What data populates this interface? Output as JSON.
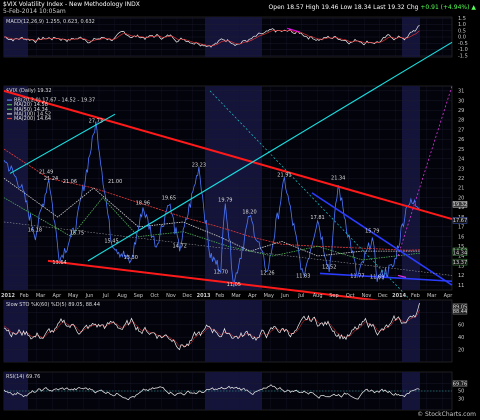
{
  "header": {
    "symbol": "$VIX",
    "name": "Volatility Index - New Methodology",
    "exchange": "INDX",
    "date": "5-Feb-2014 10:05am",
    "ohlc": "Open 18.57  High 19.46  Low 18.34  Last 19.32",
    "chg_label": "Chg",
    "chg": "+0.91 (+4.94%)",
    "chg_arrow": "▲",
    "watermark": "© StockCharts.com"
  },
  "chart_data": [
    {
      "type": "line",
      "panel": "macd",
      "title": "MACD(12,26,9) 1.255, 0.623, 0.632",
      "ylim": [
        -1.6,
        1.6
      ],
      "ticks": [
        "1.5",
        "1.0",
        "0.5",
        "0.0",
        "-0.5",
        "-1.0",
        "-1.5"
      ],
      "tick_values": [
        1.5,
        1.0,
        0.5,
        0.0,
        -0.5,
        -1.0,
        -1.5
      ]
    },
    {
      "type": "line",
      "panel": "price",
      "title": "$VIX (Daily) 19.32",
      "legend": [
        {
          "name": "$VIX (Daily) 19.32",
          "color": "#ffffff"
        },
        {
          "name": "BB(20,2.0) 17.67 - 14.52 - 19.37",
          "color": "#5c7cff"
        },
        {
          "name": "MA(20) 14.58",
          "color": "#4caf50"
        },
        {
          "name": "MA(50) 14.34",
          "color": "#4caf50"
        },
        {
          "name": "MA(100) 14.52",
          "color": "#d0d0d0"
        },
        {
          "name": "MA(200) 14.64",
          "color": "#e53935"
        }
      ],
      "ylim": [
        10.5,
        31.5
      ],
      "ticks": [
        "31",
        "30",
        "29",
        "28",
        "27",
        "26",
        "25",
        "24",
        "23",
        "22",
        "21",
        "20",
        "19",
        "18",
        "17",
        "16",
        "15",
        "14",
        "13",
        "12",
        "11"
      ],
      "tick_values": [
        31,
        30,
        29,
        28,
        27,
        26,
        25,
        24,
        23,
        22,
        21,
        20,
        19,
        18,
        17,
        16,
        15,
        14,
        13,
        12,
        11
      ],
      "current_labels": [
        {
          "text": "19.32",
          "value": 19.32
        },
        {
          "text": "17.67",
          "value": 17.67
        },
        {
          "text": "14.52",
          "value": 14.52
        },
        {
          "text": "14.34",
          "value": 14.34
        },
        {
          "text": "13.37",
          "value": 13.37
        }
      ],
      "annotations": [
        {
          "text": "27.73",
          "x": 0.205,
          "v": 27.73
        },
        {
          "text": "21.49",
          "x": 0.094,
          "v": 22.5
        },
        {
          "text": "21.24",
          "x": 0.105,
          "v": 21.8
        },
        {
          "text": "21.06",
          "x": 0.147,
          "v": 21.5
        },
        {
          "text": "21.00",
          "x": 0.248,
          "v": 21.5
        },
        {
          "text": "16.18",
          "x": 0.069,
          "v": 16.5
        },
        {
          "text": "16.75",
          "x": 0.163,
          "v": 16.2
        },
        {
          "text": "15.45",
          "x": 0.24,
          "v": 15.4
        },
        {
          "text": "13.64",
          "x": 0.124,
          "v": 13.2
        },
        {
          "text": "13.30",
          "x": 0.283,
          "v": 13.7
        },
        {
          "text": "18.96",
          "x": 0.31,
          "v": 19.3
        },
        {
          "text": "19.65",
          "x": 0.368,
          "v": 19.8
        },
        {
          "text": "14.72",
          "x": 0.392,
          "v": 14.9
        },
        {
          "text": "23.23",
          "x": 0.435,
          "v": 23.2
        },
        {
          "text": "19.79",
          "x": 0.494,
          "v": 19.6
        },
        {
          "text": "18.20",
          "x": 0.548,
          "v": 18.4
        },
        {
          "text": "12.70",
          "x": 0.484,
          "v": 12.2
        },
        {
          "text": "11.05",
          "x": 0.513,
          "v": 10.9
        },
        {
          "text": "12.26",
          "x": 0.588,
          "v": 12.1
        },
        {
          "text": "21.91",
          "x": 0.626,
          "v": 22.2
        },
        {
          "text": "17.81",
          "x": 0.7,
          "v": 17.8
        },
        {
          "text": "11.83",
          "x": 0.668,
          "v": 11.8
        },
        {
          "text": "12.52",
          "x": 0.726,
          "v": 12.7
        },
        {
          "text": "21.34",
          "x": 0.746,
          "v": 21.9
        },
        {
          "text": "11.77",
          "x": 0.789,
          "v": 11.8
        },
        {
          "text": "15.79",
          "x": 0.822,
          "v": 16.4
        },
        {
          "text": "11.69",
          "x": 0.833,
          "v": 11.7
        }
      ],
      "x_labels": [
        "2012",
        "Feb",
        "Mar",
        "Apr",
        "May",
        "Jun",
        "Jul",
        "Aug",
        "Sep",
        "Oct",
        "Nov",
        "Dec",
        "2013",
        "Feb",
        "Mar",
        "Apr",
        "May",
        "Jun",
        "Jul",
        "Aug",
        "Sep",
        "Oct",
        "Nov",
        "Dec",
        "2014",
        "Feb",
        "Mar",
        "Apr"
      ]
    },
    {
      "type": "line",
      "panel": "stoch",
      "title": "Slow STO %K(60) %D(5) 89.05, 88.44",
      "ylim": [
        0,
        100
      ],
      "ticks": [
        "80",
        "60",
        "40",
        "20"
      ],
      "tick_values": [
        80,
        60,
        40,
        20
      ],
      "current_labels": [
        {
          "text": "89.05",
          "value": 89.05
        },
        {
          "text": "88.44",
          "value": 88.44
        }
      ]
    },
    {
      "type": "line",
      "panel": "rsi",
      "title": "RSI(14) 69.76",
      "ylim": [
        0,
        100
      ],
      "ticks": [
        "70",
        "50",
        "30"
      ],
      "tick_values": [
        70,
        50,
        30
      ],
      "current_labels": [
        {
          "text": "69.76",
          "value": 69.76
        }
      ]
    }
  ]
}
